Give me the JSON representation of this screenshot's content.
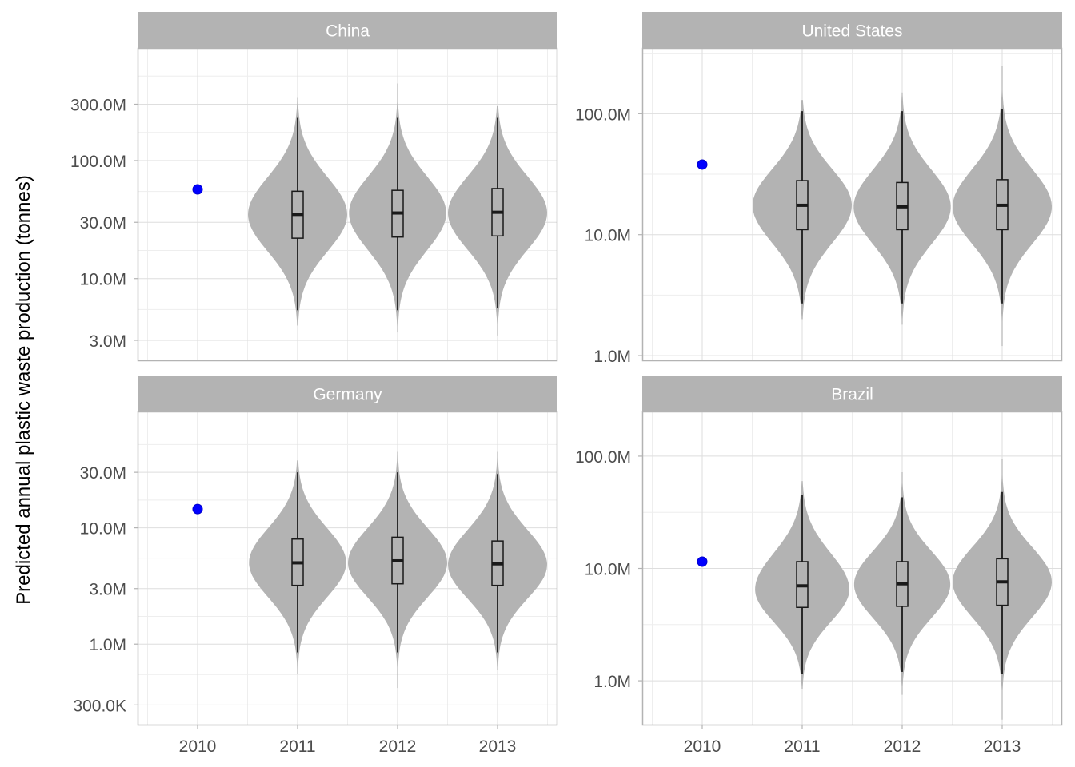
{
  "chart_data": {
    "type": "violin",
    "ylabel": "Predicted annual plastic waste production (tonnes)",
    "x_categories": [
      "2010",
      "2011",
      "2012",
      "2013"
    ],
    "y_scale": "log10",
    "colors": {
      "strip_fill": "#b3b3b3",
      "strip_text": "#ffffff",
      "violin_fill": "#b3b3b3",
      "observed_point": "#0000ff",
      "box_line": "#1a1a1a",
      "grid": "#dedede",
      "border": "#b3b3b3",
      "tick_text": "#4d4d4d"
    },
    "panels": [
      {
        "title": "China",
        "ylim": [
          2000000,
          900000000
        ],
        "yticks": [
          {
            "value": 3000000,
            "label": "3.0M"
          },
          {
            "value": 10000000,
            "label": "10.0M"
          },
          {
            "value": 30000000,
            "label": "30.0M"
          },
          {
            "value": 100000000,
            "label": "100.0M"
          },
          {
            "value": 300000000,
            "label": "300.0M"
          }
        ],
        "observed": {
          "x": "2010",
          "y": 57000000
        },
        "violins": [
          {
            "x": "2011",
            "q1": 22000000,
            "median": 35000000,
            "q3": 55000000,
            "whisker_low": 5400000,
            "whisker_high": 230000000,
            "min": 4000000,
            "max": 340000000,
            "mode": 35000000,
            "width": 1.0
          },
          {
            "x": "2012",
            "q1": 22500000,
            "median": 36000000,
            "q3": 56000000,
            "whisker_low": 5400000,
            "whisker_high": 230000000,
            "min": 3500000,
            "max": 450000000,
            "mode": 36000000,
            "width": 0.98
          },
          {
            "x": "2013",
            "q1": 23000000,
            "median": 36500000,
            "q3": 58000000,
            "whisker_low": 5600000,
            "whisker_high": 230000000,
            "min": 3300000,
            "max": 290000000,
            "mode": 36000000,
            "width": 1.0
          }
        ]
      },
      {
        "title": "United States",
        "ylim": [
          900000,
          350000000
        ],
        "yticks": [
          {
            "value": 1000000,
            "label": "1.0M"
          },
          {
            "value": 10000000,
            "label": "10.0M"
          },
          {
            "value": 100000000,
            "label": "100.0M"
          }
        ],
        "observed": {
          "x": "2010",
          "y": 38000000
        },
        "violins": [
          {
            "x": "2011",
            "q1": 11000000,
            "median": 17500000,
            "q3": 28000000,
            "whisker_low": 2700000,
            "whisker_high": 105000000,
            "min": 2000000,
            "max": 130000000,
            "mode": 17500000,
            "width": 1.0
          },
          {
            "x": "2012",
            "q1": 11000000,
            "median": 17000000,
            "q3": 27000000,
            "whisker_low": 2700000,
            "whisker_high": 105000000,
            "min": 1800000,
            "max": 150000000,
            "mode": 17000000,
            "width": 0.98
          },
          {
            "x": "2013",
            "q1": 11000000,
            "median": 17500000,
            "q3": 28500000,
            "whisker_low": 2700000,
            "whisker_high": 110000000,
            "min": 1200000,
            "max": 250000000,
            "mode": 17000000,
            "width": 1.0
          }
        ]
      },
      {
        "title": "Germany",
        "ylim": [
          200000,
          100000000
        ],
        "yticks": [
          {
            "value": 300000,
            "label": "300.0K"
          },
          {
            "value": 1000000,
            "label": "1.0M"
          },
          {
            "value": 3000000,
            "label": "3.0M"
          },
          {
            "value": 10000000,
            "label": "10.0M"
          },
          {
            "value": 30000000,
            "label": "30.0M"
          }
        ],
        "observed": {
          "x": "2010",
          "y": 14500000
        },
        "violins": [
          {
            "x": "2011",
            "q1": 3200000,
            "median": 5000000,
            "q3": 8000000,
            "whisker_low": 850000,
            "whisker_high": 30000000,
            "min": 550000,
            "max": 38000000,
            "mode": 5000000,
            "width": 0.98
          },
          {
            "x": "2012",
            "q1": 3300000,
            "median": 5200000,
            "q3": 8300000,
            "whisker_low": 850000,
            "whisker_high": 30000000,
            "min": 420000,
            "max": 45000000,
            "mode": 5000000,
            "width": 1.0
          },
          {
            "x": "2013",
            "q1": 3200000,
            "median": 4900000,
            "q3": 7700000,
            "whisker_low": 850000,
            "whisker_high": 29000000,
            "min": 600000,
            "max": 45000000,
            "mode": 4800000,
            "width": 1.0
          }
        ]
      },
      {
        "title": "Brazil",
        "ylim": [
          400000,
          250000000
        ],
        "yticks": [
          {
            "value": 1000000,
            "label": "1.0M"
          },
          {
            "value": 10000000,
            "label": "10.0M"
          },
          {
            "value": 100000000,
            "label": "100.0M"
          }
        ],
        "observed": {
          "x": "2010",
          "y": 11500000
        },
        "violins": [
          {
            "x": "2011",
            "q1": 4500000,
            "median": 7000000,
            "q3": 11500000,
            "whisker_low": 1150000,
            "whisker_high": 45000000,
            "min": 850000,
            "max": 60000000,
            "mode": 6500000,
            "width": 0.95
          },
          {
            "x": "2012",
            "q1": 4600000,
            "median": 7300000,
            "q3": 11500000,
            "whisker_low": 1200000,
            "whisker_high": 43000000,
            "min": 750000,
            "max": 72000000,
            "mode": 7200000,
            "width": 0.97
          },
          {
            "x": "2013",
            "q1": 4700000,
            "median": 7600000,
            "q3": 12200000,
            "whisker_low": 1150000,
            "whisker_high": 48000000,
            "min": 450000,
            "max": 95000000,
            "mode": 7600000,
            "width": 1.0
          }
        ]
      }
    ]
  }
}
